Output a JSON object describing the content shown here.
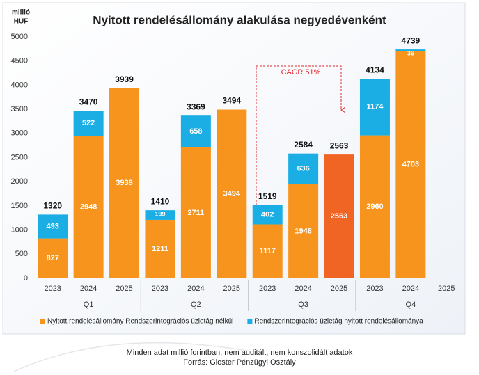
{
  "chart_data": {
    "type": "stacked-bar",
    "title": "Nyitott rendelésállomány alakulása negyedévenként",
    "y_label": [
      "millió",
      "HUF"
    ],
    "categories": [
      "2023",
      "2024",
      "2025",
      "2023",
      "2024",
      "2025",
      "2023",
      "2024",
      "2025",
      "2023",
      "2024",
      "2025"
    ],
    "groups": [
      "Q1",
      "Q2",
      "Q3",
      "Q4"
    ],
    "series": [
      {
        "name": "Nyitott rendelésállomány Rendszerintegrációs üzletág nélkül",
        "color": "#f7941d",
        "colors": [
          "#f7941d",
          "#f7941d",
          "#f7941d",
          "#f7941d",
          "#f7941d",
          "#f7941d",
          "#f7941d",
          "#f7941d",
          "#f06424",
          "#f7941d",
          "#f7941d",
          "#f7941d"
        ],
        "values": [
          827,
          2948,
          3939,
          1211,
          2711,
          3494,
          1117,
          1948,
          2563,
          2960,
          4703,
          null
        ]
      },
      {
        "name": "Rendszerintegrációs üzletág nyitott rendelésállománya",
        "color": "#1aaee5",
        "values": [
          493,
          522,
          null,
          199,
          658,
          null,
          402,
          636,
          null,
          1174,
          36,
          null
        ]
      }
    ],
    "totals": [
      1320,
      3470,
      3939,
      1410,
      3369,
      3494,
      1519,
      2584,
      2563,
      4134,
      4739,
      null
    ],
    "annotation": "CAGR 51%",
    "ylim": [
      0,
      5000
    ],
    "yticks": [
      0,
      500,
      1000,
      1500,
      2000,
      2500,
      3000,
      3500,
      4000,
      4500,
      5000
    ],
    "legend": "bottom",
    "footer": [
      "Minden adat millió forintban, nem auditált, nem konszolidált adatok",
      "Forrás: Gloster Pénzügyi Osztály"
    ]
  }
}
